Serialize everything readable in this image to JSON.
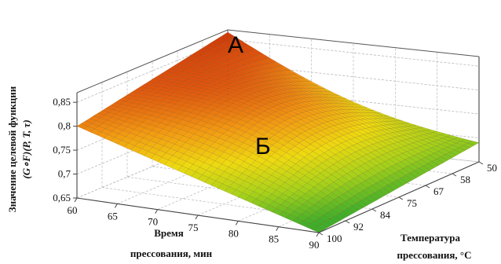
{
  "chart_data": {
    "type": "surface3d",
    "title": "",
    "xlabel_lines": [
      "Время",
      "прессования, мин"
    ],
    "ylabel_lines": [
      "Температура",
      "прессования, °C"
    ],
    "zlabel_lines": [
      "Значение целевой функции",
      "(G∘F)(P, T, τ)"
    ],
    "x_ticks": [
      "60",
      "65",
      "70",
      "75",
      "80",
      "85",
      "90"
    ],
    "y_ticks": [
      "50",
      "58",
      "67",
      "75",
      "84",
      "92",
      "100"
    ],
    "z_ticks": [
      "0,65",
      "0,7",
      "0,75",
      "0,8",
      "0,85"
    ],
    "xlim": [
      60,
      90
    ],
    "ylim": [
      50,
      100
    ],
    "zlim": [
      0.65,
      0.87
    ],
    "corner_values": [
      {
        "time": 60,
        "temp": 50,
        "z": 0.865
      },
      {
        "time": 60,
        "temp": 100,
        "z": 0.8
      },
      {
        "time": 90,
        "temp": 100,
        "z": 0.65
      },
      {
        "time": 90,
        "temp": 50,
        "z": 0.69
      }
    ],
    "annotations": [
      {
        "label": "А",
        "time": 60,
        "temp": 50
      },
      {
        "label": "Б",
        "time": 90,
        "temp": 100
      }
    ],
    "colormap": [
      "#3fae2a",
      "#a6d21a",
      "#eeda10",
      "#f29a12",
      "#e0540d",
      "#c93509"
    ],
    "grid": true
  }
}
